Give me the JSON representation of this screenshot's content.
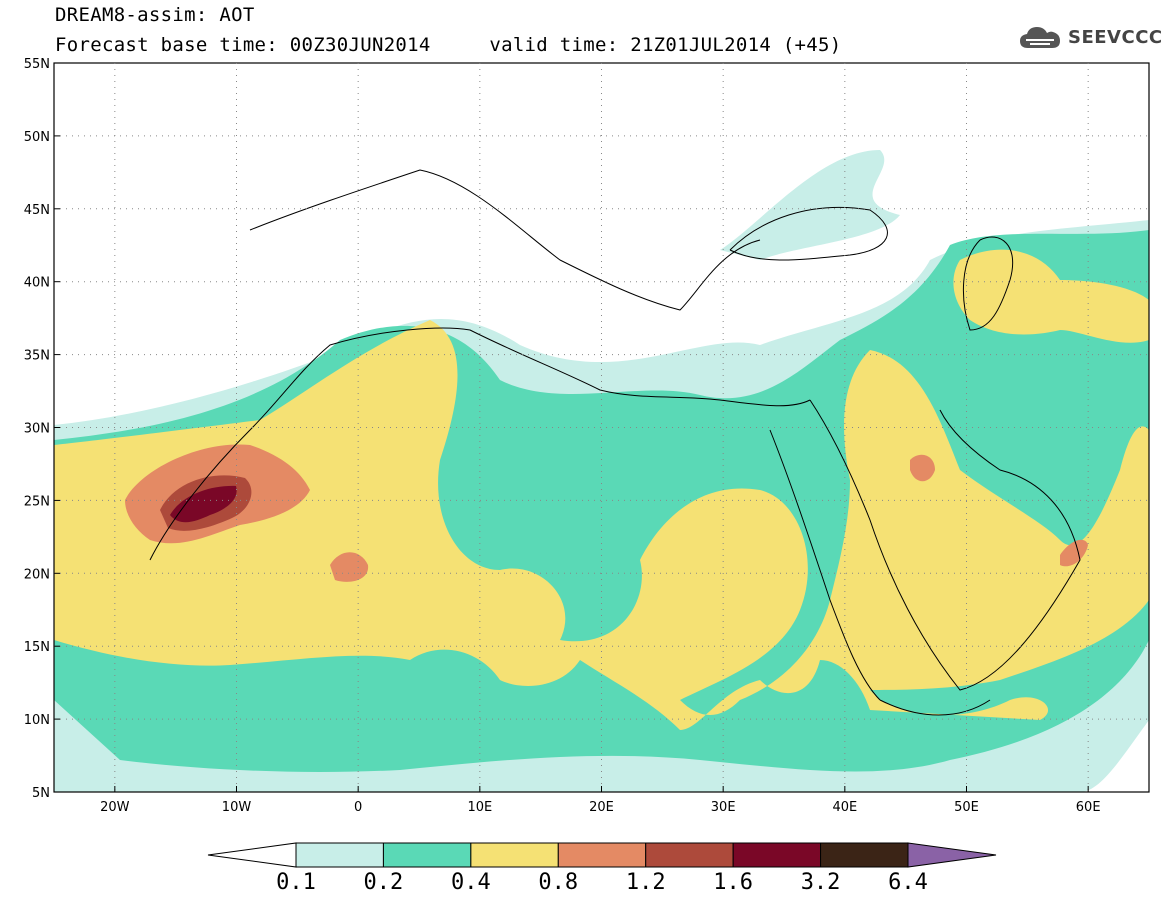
{
  "title": {
    "line1": "DREAM8-assim: AOT",
    "line2": "Forecast base time: 00Z30JUN2014     valid time: 21Z01JUL2014 (+45)"
  },
  "logo": {
    "text": "SEEVCCC",
    "icon": "cloud-icon"
  },
  "map": {
    "lon_range": [
      -25,
      65
    ],
    "lat_range": [
      5,
      55
    ],
    "lat_labels": [
      "55N",
      "50N",
      "45N",
      "40N",
      "35N",
      "30N",
      "25N",
      "20N",
      "15N",
      "10N",
      "5N"
    ],
    "lon_labels": [
      "20W",
      "10W",
      "0",
      "10E",
      "20E",
      "30E",
      "40E",
      "50E",
      "60E"
    ]
  },
  "colorbar": {
    "colors": [
      "#ffffff",
      "#c8eee8",
      "#5ad9b6",
      "#f5e174",
      "#e48a64",
      "#ad4a3b",
      "#7a0727",
      "#3b2416",
      "#8a62a6"
    ],
    "labels": [
      "0.1",
      "0.2",
      "0.4",
      "0.8",
      "1.2",
      "1.6",
      "3.2",
      "6.4"
    ]
  }
}
